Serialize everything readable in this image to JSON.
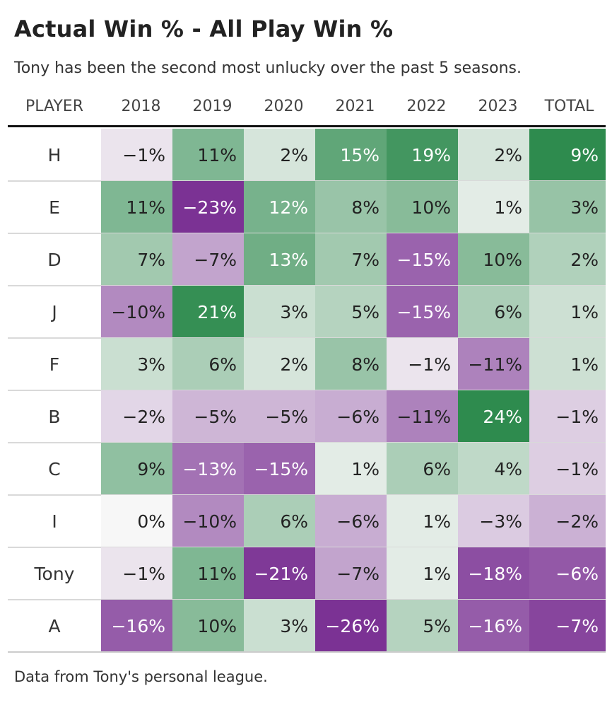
{
  "title": "Actual Win % - All Play Win %",
  "subtitle": "Tony has been the second most unlucky over the past 5 seasons.",
  "source": "Data from Tony's personal league.",
  "chart_data": {
    "type": "heatmap",
    "columns": [
      "PLAYER",
      "2018",
      "2019",
      "2020",
      "2021",
      "2022",
      "2023",
      "TOTAL"
    ],
    "rows": [
      {
        "player": "H",
        "values": [
          "−1%",
          "11%",
          "2%",
          "15%",
          "19%",
          "2%",
          "9%"
        ]
      },
      {
        "player": "E",
        "values": [
          "11%",
          "−23%",
          "12%",
          "8%",
          "10%",
          "1%",
          "3%"
        ]
      },
      {
        "player": "D",
        "values": [
          "7%",
          "−7%",
          "13%",
          "7%",
          "−15%",
          "10%",
          "2%"
        ]
      },
      {
        "player": "J",
        "values": [
          "−10%",
          "21%",
          "3%",
          "5%",
          "−15%",
          "6%",
          "1%"
        ]
      },
      {
        "player": "F",
        "values": [
          "3%",
          "6%",
          "2%",
          "8%",
          "−1%",
          "−11%",
          "1%"
        ]
      },
      {
        "player": "B",
        "values": [
          "−2%",
          "−5%",
          "−5%",
          "−6%",
          "−11%",
          "24%",
          "−1%"
        ]
      },
      {
        "player": "C",
        "values": [
          "9%",
          "−13%",
          "−15%",
          "1%",
          "6%",
          "4%",
          "−1%"
        ]
      },
      {
        "player": "I",
        "values": [
          "0%",
          "−10%",
          "6%",
          "−6%",
          "1%",
          "−3%",
          "−2%"
        ]
      },
      {
        "player": "Tony",
        "values": [
          "−1%",
          "11%",
          "−21%",
          "−7%",
          "1%",
          "−18%",
          "−6%"
        ]
      },
      {
        "player": "A",
        "values": [
          "−16%",
          "10%",
          "3%",
          "−26%",
          "5%",
          "−16%",
          "−7%"
        ]
      }
    ],
    "color_scale": {
      "negative": "#7b3294",
      "neutral": "#f7f7f7",
      "positive": "#2e8b4e"
    }
  }
}
